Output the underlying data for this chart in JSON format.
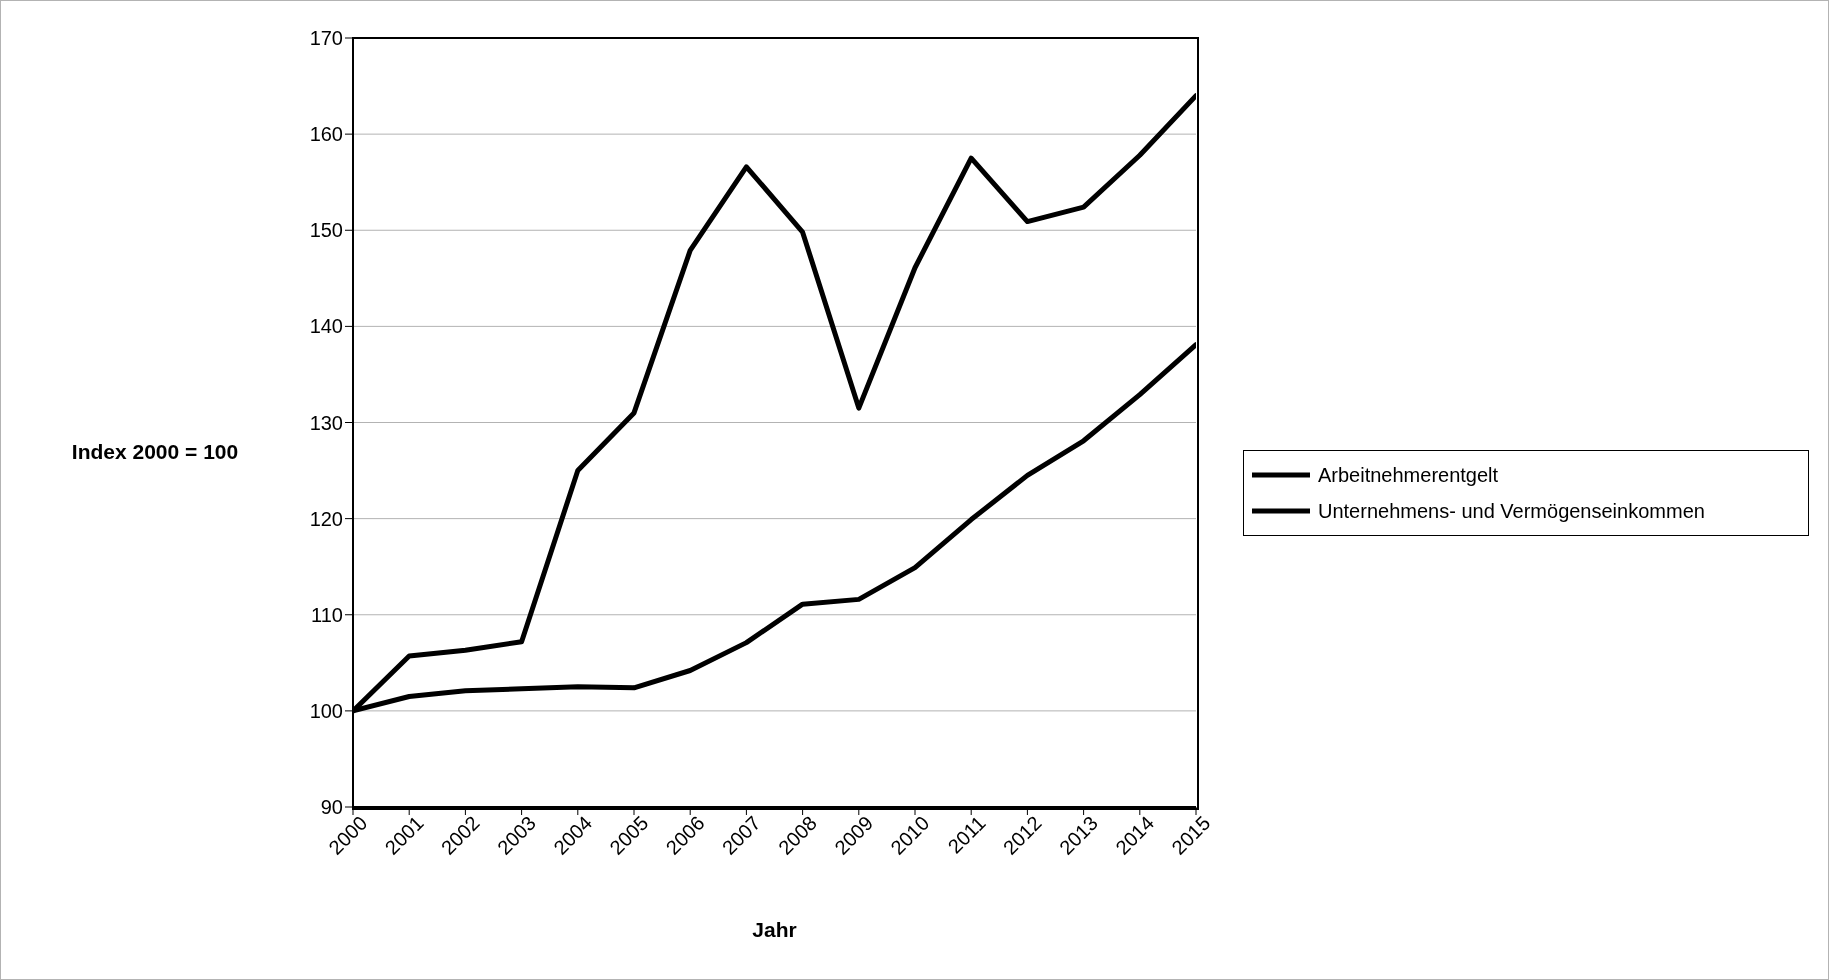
{
  "chart_data": {
    "type": "line",
    "ylabel": "Index 2000 = 100",
    "xlabel": "Jahr",
    "x": [
      2000,
      2001,
      2002,
      2003,
      2004,
      2005,
      2006,
      2007,
      2008,
      2009,
      2010,
      2011,
      2012,
      2013,
      2014,
      2015
    ],
    "series": [
      {
        "name": "Arbeitnehmerentgelt",
        "color": "#000000",
        "values": [
          100,
          101.5,
          102.1,
          102.3,
          102.5,
          102.4,
          104.2,
          107.1,
          111.1,
          111.6,
          114.9,
          119.9,
          124.5,
          128.1,
          132.9,
          138.1
        ]
      },
      {
        "name": "Unternehmens- und Vermögenseinkommen",
        "color": "#000000",
        "values": [
          100,
          105.7,
          106.3,
          107.2,
          125.0,
          131.0,
          147.9,
          156.6,
          149.8,
          131.5,
          146.1,
          157.5,
          150.9,
          152.4,
          157.8,
          164.0
        ]
      }
    ],
    "xlim": [
      2000,
      2015
    ],
    "xticks": [
      2000,
      2001,
      2002,
      2003,
      2004,
      2005,
      2006,
      2007,
      2008,
      2009,
      2010,
      2011,
      2012,
      2013,
      2014,
      2015
    ],
    "ylim": [
      90,
      170
    ],
    "yticks": [
      90,
      100,
      110,
      120,
      130,
      140,
      150,
      160,
      170
    ],
    "grid": "y",
    "legend": "right",
    "marker": "none",
    "line_style": "solid"
  }
}
